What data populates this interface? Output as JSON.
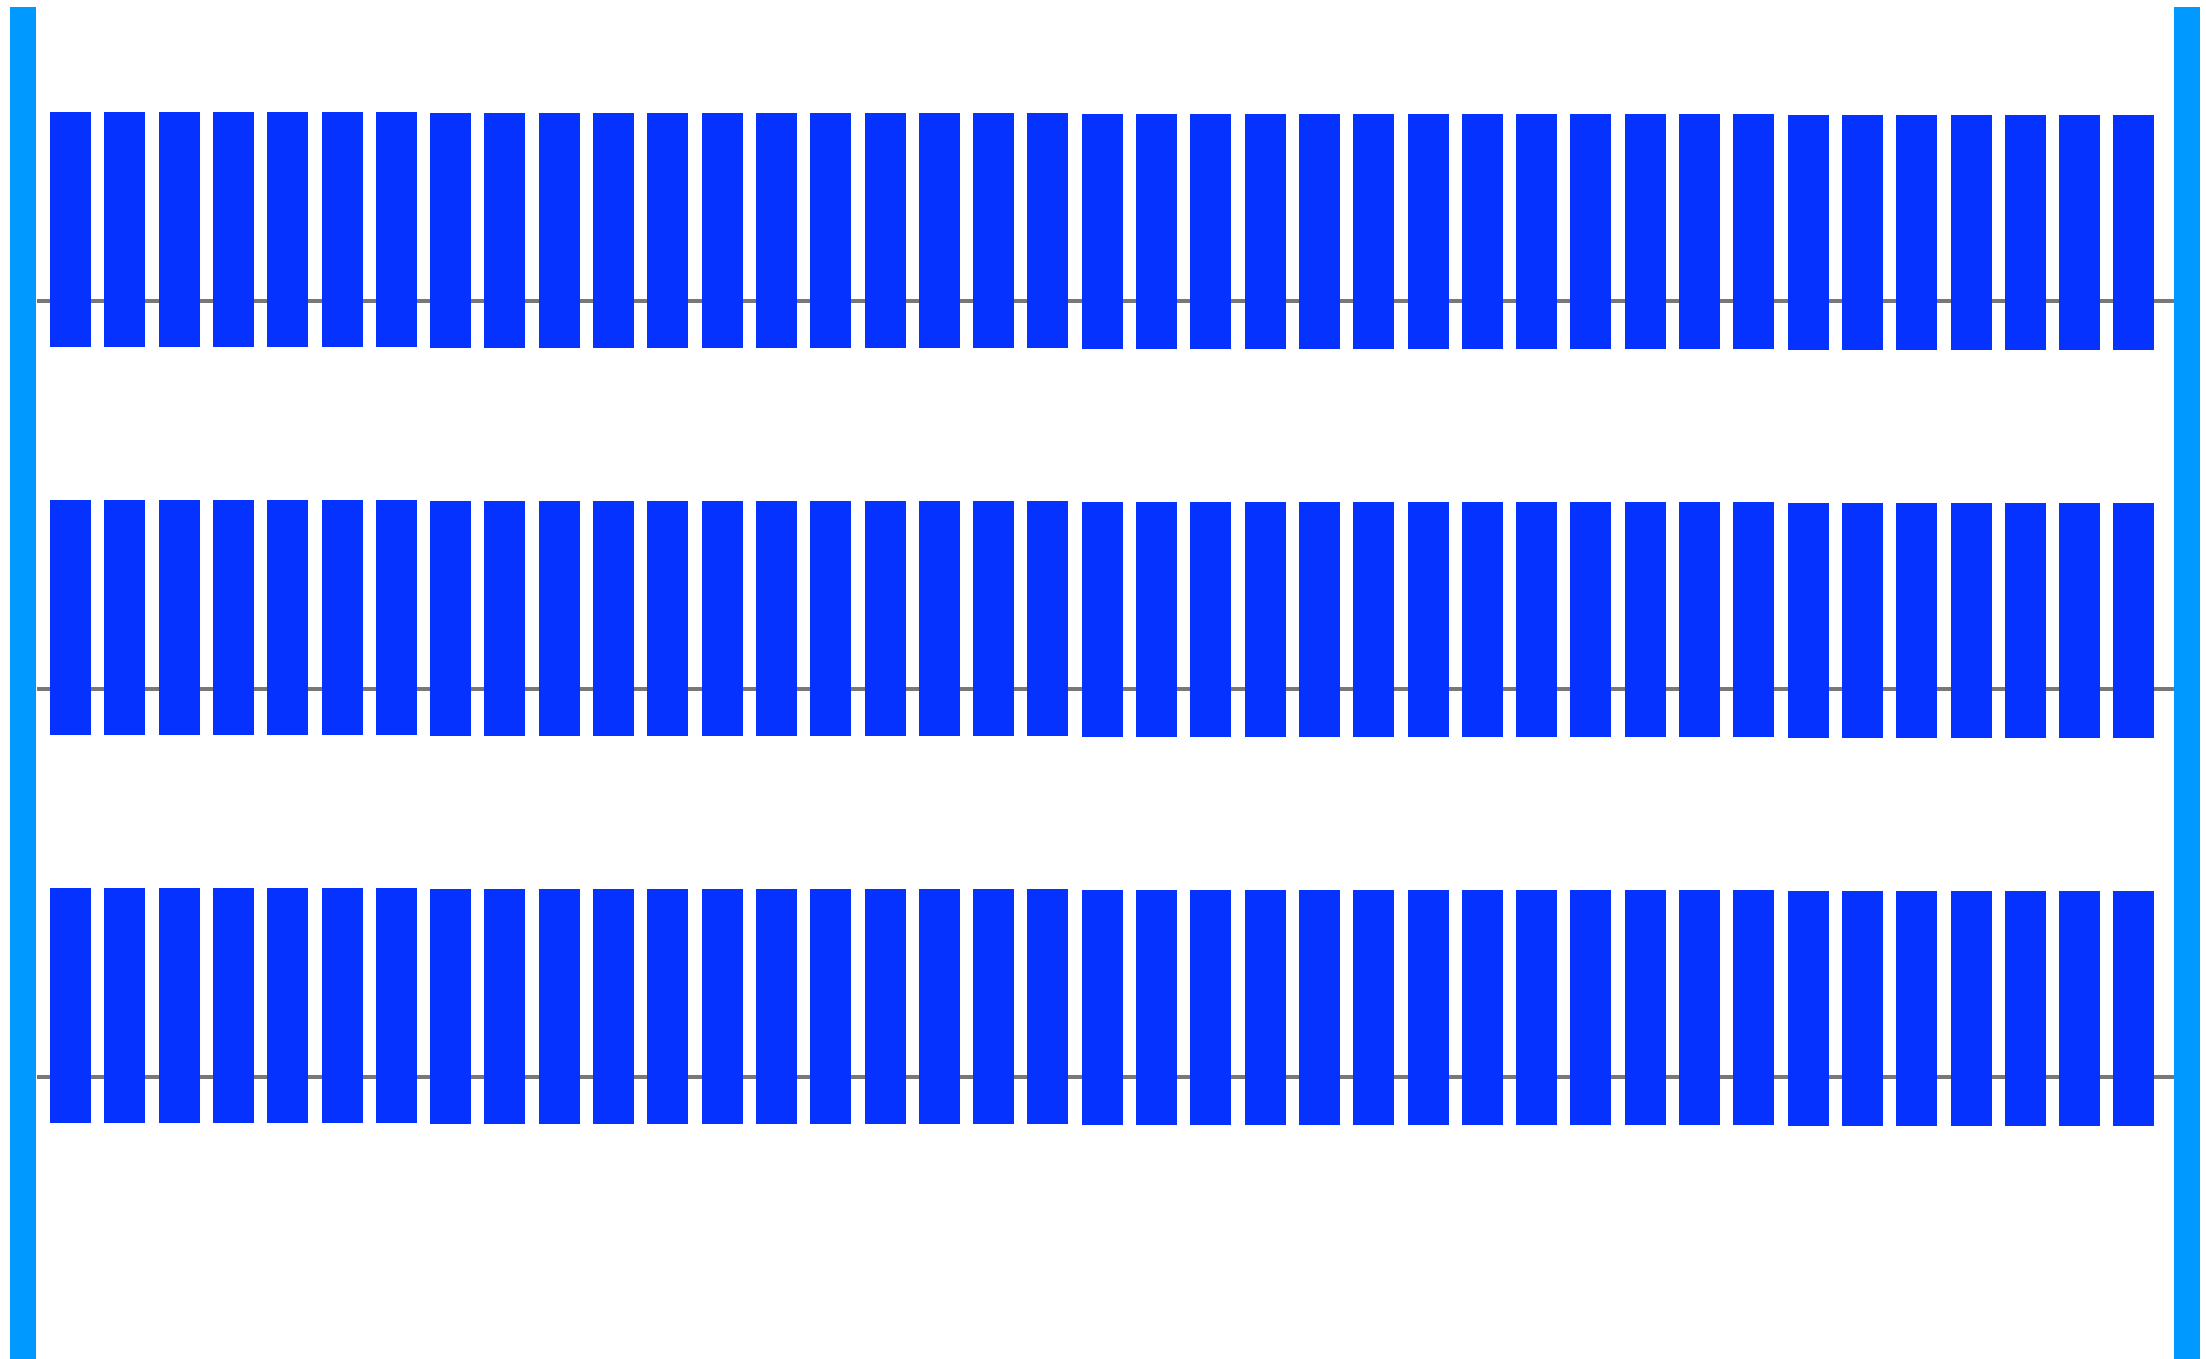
{
  "colors": {
    "background": "#ffffff",
    "post": "#0099ff",
    "wire": "#777777",
    "slat": "#0532ff"
  },
  "diagram": {
    "post_count": 2,
    "row_count": 3,
    "slats_per_row": 39
  }
}
